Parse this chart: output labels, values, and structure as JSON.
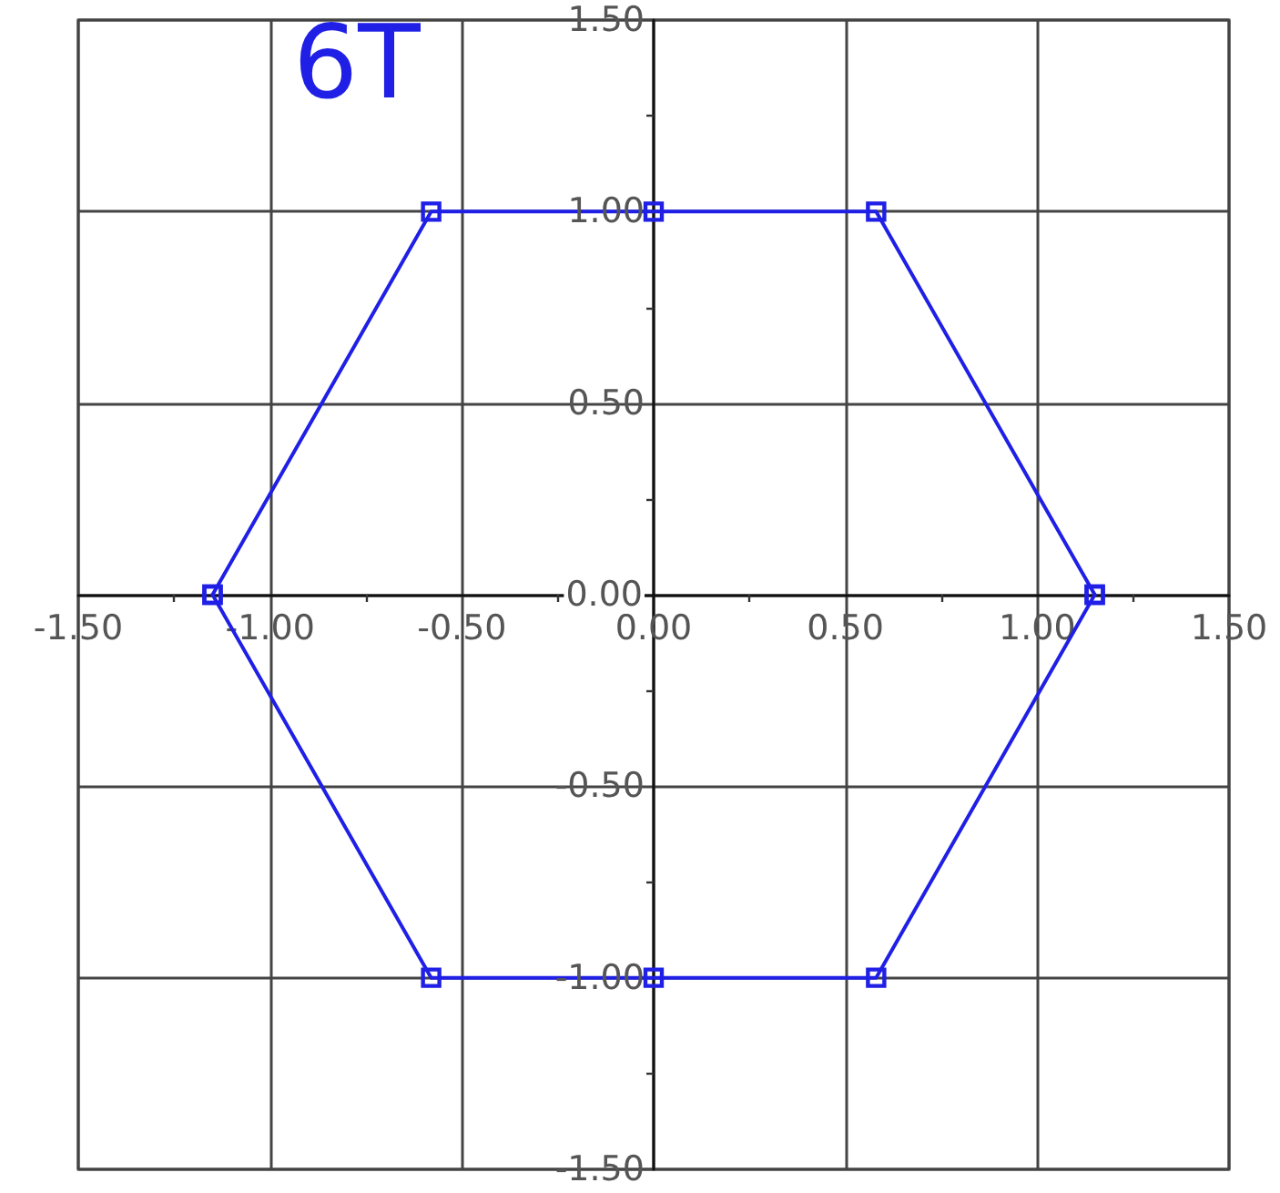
{
  "chart_data": {
    "type": "line",
    "title": "6T",
    "x": [
      -1.15,
      -0.58,
      0,
      0.58,
      1.15
    ],
    "series": [
      {
        "color": "#1f1fe6",
        "values": [
          0,
          1,
          1,
          1,
          0
        ]
      },
      {
        "color": "#1f1fe6",
        "values": [
          0,
          -1,
          -1,
          -1,
          0
        ]
      }
    ],
    "xlim": [
      -1.5,
      1.5
    ],
    "ylim": [
      -1.5,
      1.5
    ],
    "xticks": [
      {
        "value": -1.5,
        "label": "-1.50"
      },
      {
        "value": -1.25,
        "label": null
      },
      {
        "value": -1,
        "label": "-1.00"
      },
      {
        "value": -0.75,
        "label": null
      },
      {
        "value": -0.5,
        "label": "-0.50"
      },
      {
        "value": -0.25,
        "label": null
      },
      {
        "value": 0,
        "label": "0.00"
      },
      {
        "value": 0.25,
        "label": null
      },
      {
        "value": 0.5,
        "label": "0.50"
      },
      {
        "value": 0.75,
        "label": null
      },
      {
        "value": 1,
        "label": "1.00"
      },
      {
        "value": 1.25,
        "label": null
      },
      {
        "value": 1.5,
        "label": "1.50"
      }
    ],
    "yticks": [
      {
        "value": -1.5,
        "label": "-1.50"
      },
      {
        "value": -1.25,
        "label": null
      },
      {
        "value": -1,
        "label": "-1.00"
      },
      {
        "value": -0.75,
        "label": null
      },
      {
        "value": -0.5,
        "label": "-0.50"
      },
      {
        "value": -0.25,
        "label": null
      },
      {
        "value": 0,
        "label": "0.00"
      },
      {
        "value": 0.25,
        "label": null
      },
      {
        "value": 0.5,
        "label": "0.50"
      },
      {
        "value": 0.75,
        "label": null
      },
      {
        "value": 1,
        "label": "1.00"
      },
      {
        "value": 1.25,
        "label": null
      },
      {
        "value": 1.5,
        "label": "1.50"
      }
    ],
    "grid": true,
    "marker": "square",
    "line_style": "solid"
  }
}
